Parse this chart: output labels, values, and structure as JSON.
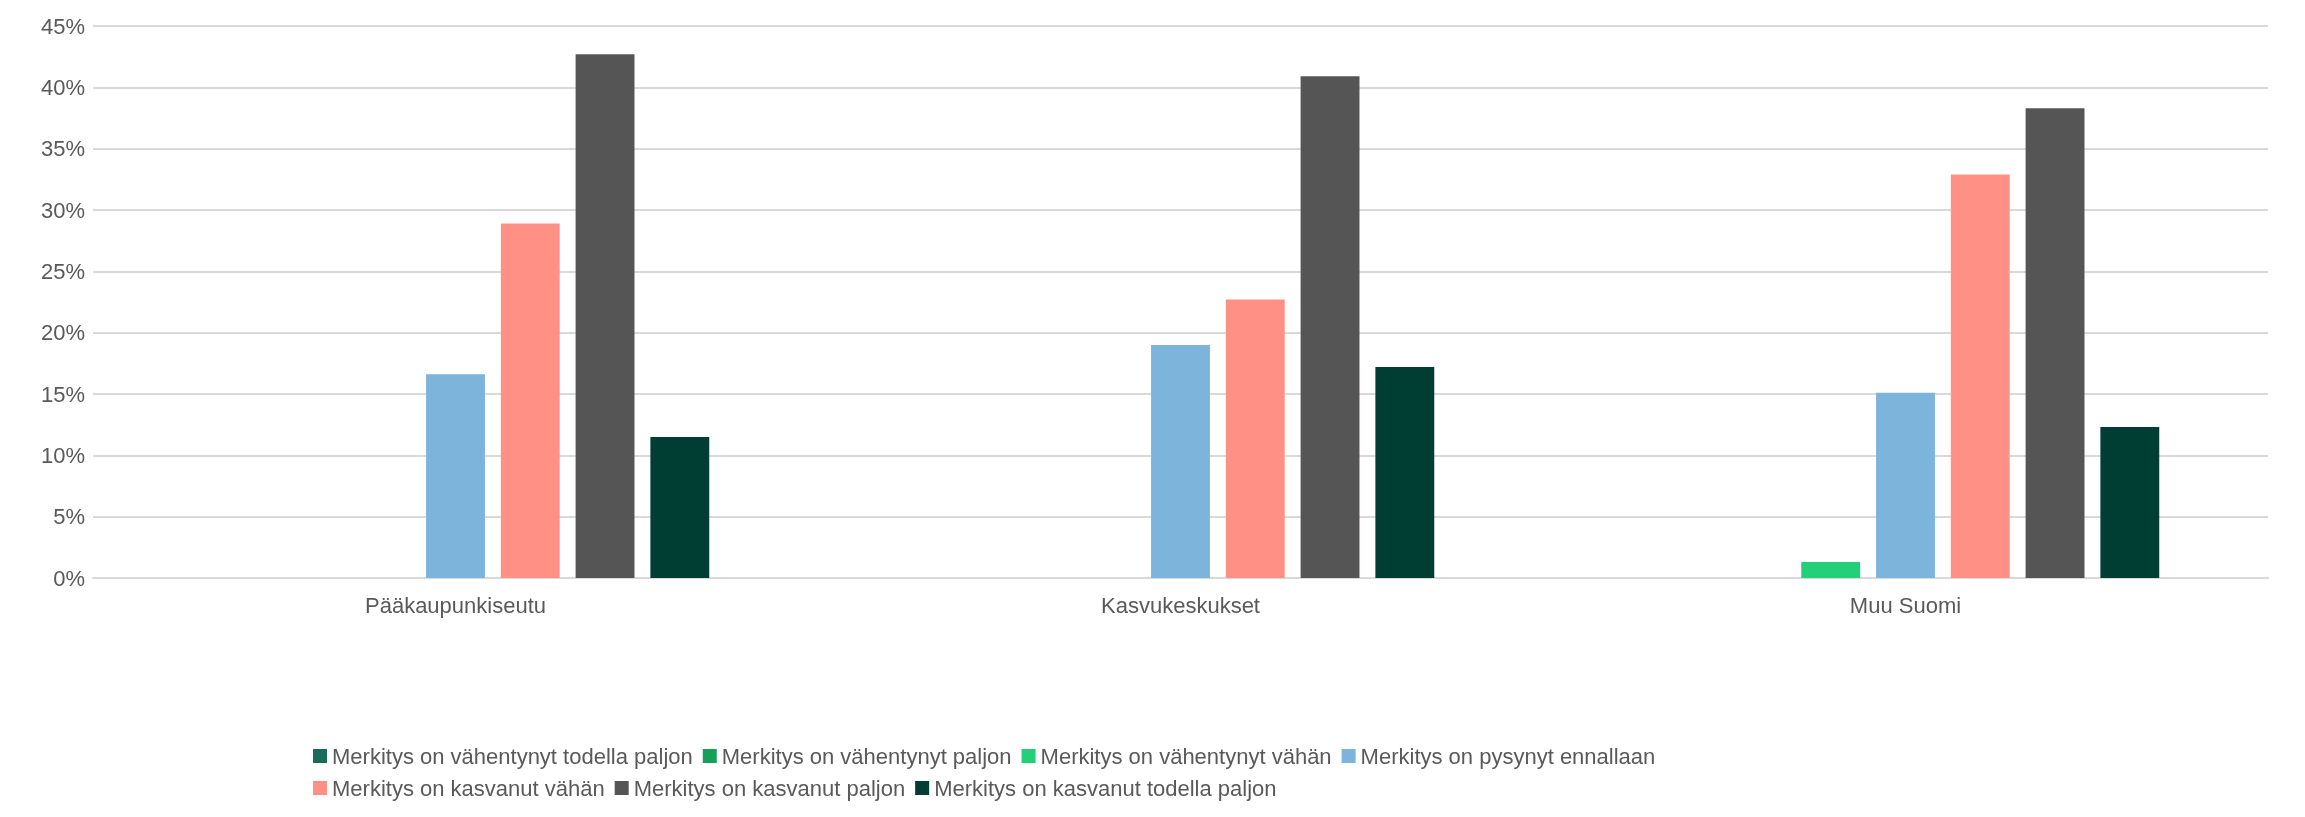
{
  "chart_data": {
    "type": "bar",
    "categories": [
      "Pääkaupunkiseutu",
      "Kasvukeskukset",
      "Muu Suomi"
    ],
    "series": [
      {
        "name": "Merkitys on vähentynyt todella paljon",
        "color": "#1b6b5a",
        "values": [
          0,
          0,
          0
        ]
      },
      {
        "name": "Merkitys on vähentynyt paljon",
        "color": "#14a05a",
        "values": [
          0,
          0,
          0
        ]
      },
      {
        "name": "Merkitys on vähentynyt vähän",
        "color": "#22d07a",
        "values": [
          0,
          0,
          1.3
        ]
      },
      {
        "name": "Merkitys on pysynyt ennallaan",
        "color": "#7cb4dc",
        "values": [
          16.6,
          19.0,
          15.1
        ]
      },
      {
        "name": "Merkitys on kasvanut vähän",
        "color": "#ff9086",
        "values": [
          28.9,
          22.7,
          32.9
        ]
      },
      {
        "name": "Merkitys on kasvanut paljon",
        "color": "#555555",
        "values": [
          42.7,
          40.9,
          38.3
        ]
      },
      {
        "name": "Merkitys on kasvanut todella paljon",
        "color": "#003d33",
        "values": [
          11.5,
          17.2,
          12.3
        ]
      }
    ],
    "ylim": [
      0,
      45
    ],
    "yticks": [
      {
        "value": 0,
        "label": "0%"
      },
      {
        "value": 5,
        "label": "5%"
      },
      {
        "value": 10,
        "label": "10%"
      },
      {
        "value": 15,
        "label": "15%"
      },
      {
        "value": 20,
        "label": "20%"
      },
      {
        "value": 25,
        "label": "25%"
      },
      {
        "value": 30,
        "label": "30%"
      },
      {
        "value": 35,
        "label": "35%"
      },
      {
        "value": 40,
        "label": "40%"
      },
      {
        "value": 45,
        "label": "45%"
      }
    ],
    "grid": "y",
    "legend": "bottom"
  }
}
